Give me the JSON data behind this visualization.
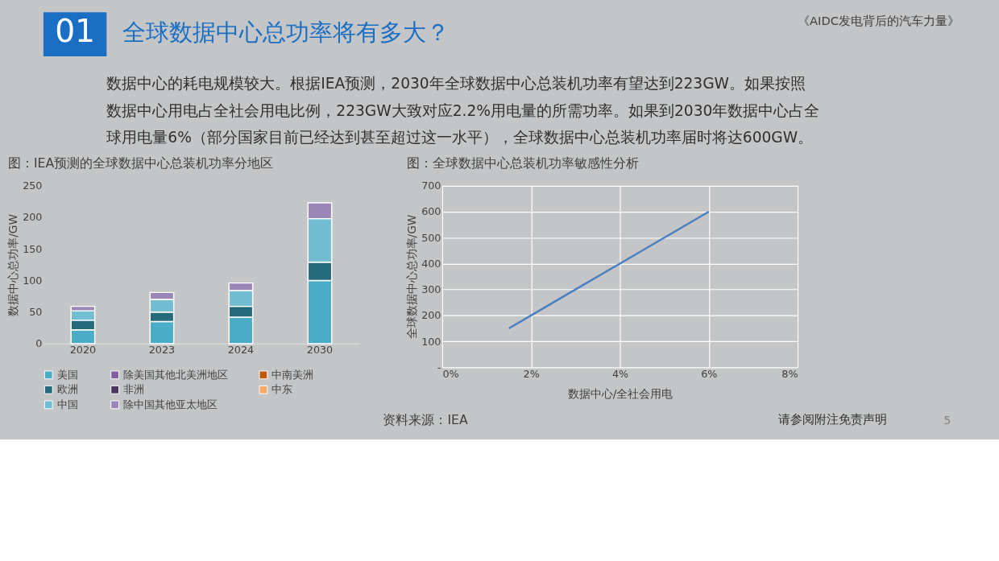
{
  "chart_data": [
    {
      "type": "bar",
      "title": "图：IEA预测的全球数据中心总装机功率分地区",
      "ylabel": "数据中心总功率/GW",
      "categories": [
        "2020",
        "2023",
        "2024",
        "2030"
      ],
      "stacked": true,
      "ylim": [
        0,
        250
      ],
      "yticks": [
        0,
        50,
        100,
        150,
        200,
        250
      ],
      "grid": false,
      "legend": "bottom",
      "annotations": [
        "01",
        "全球数据中心总功率将有多大？",
        "《AIDC发电背后的汽车力量》",
        "数据中心的耗电规模较大。根据IEA预测，2030年全球数据中心总装机功率有望达到223GW。如果按照",
        "数据中心用电占全社会用电比例，223GW大致对应2.2%用电量的所需功率。如果到2030年数据中心占全",
        "球用电量6%（部分国家目前已经达到甚至超过这一水平），全球数据中心总装机功率届时将达600GW。",
        "资料来源：IEA",
        "请参阅附注免责声明",
        "5"
      ],
      "series": [
        {
          "name": "美国",
          "color": "#4aacc6",
          "values": [
            22,
            35,
            42,
            100
          ]
        },
        {
          "name": "欧洲",
          "color": "#256a7b",
          "values": [
            15,
            15,
            17,
            29
          ]
        },
        {
          "name": "中国",
          "color": "#72bdd2",
          "values": [
            15,
            20,
            25,
            69
          ]
        },
        {
          "name": "除美国其他北美洲地区",
          "color": "#7f60a1",
          "values": [
            null,
            null,
            null,
            null
          ]
        },
        {
          "name": "非洲",
          "color": "#4a3560",
          "values": [
            null,
            null,
            null,
            null
          ]
        },
        {
          "name": "除中国其他亚太地区",
          "color": "#9b86b8",
          "values": [
            7,
            11,
            12,
            25
          ]
        },
        {
          "name": "中南美洲",
          "color": "#c0580e",
          "values": [
            null,
            null,
            null,
            null
          ]
        },
        {
          "name": "中东",
          "color": "#f7a866",
          "values": [
            null,
            null,
            null,
            null
          ]
        }
      ]
    },
    {
      "type": "line",
      "title": "图：全球数据中心总装机功率敏感性分析",
      "xlabel": "数据中心/全社会用电",
      "ylabel": "全球数据中心总功率/GW",
      "xlim": [
        0,
        8
      ],
      "xticks": [
        {
          "value": 0,
          "label": "0%"
        },
        {
          "value": 2,
          "label": "2%"
        },
        {
          "value": 4,
          "label": "4%"
        },
        {
          "value": 6,
          "label": "6%"
        },
        {
          "value": 8,
          "label": "8%"
        }
      ],
      "ylim": [
        0,
        700
      ],
      "yticks": [
        {
          "value": 0,
          "label": "-"
        },
        100,
        200,
        300,
        400,
        500,
        600,
        700
      ],
      "grid": true,
      "marker": "none",
      "line_style": "solid",
      "series": [
        {
          "color": "#4a7fc1",
          "x": [
            1.5,
            2,
            3,
            4,
            5,
            6
          ],
          "values": [
            150,
            200,
            300,
            400,
            500,
            600
          ]
        }
      ]
    }
  ]
}
